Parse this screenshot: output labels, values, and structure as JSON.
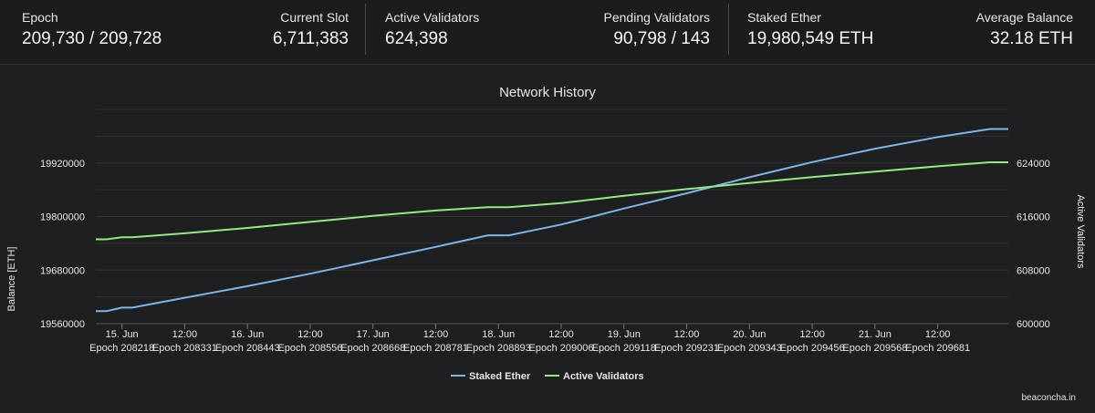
{
  "stats": {
    "epoch": {
      "label": "Epoch",
      "value": "209,730 / 209,728"
    },
    "current_slot": {
      "label": "Current Slot",
      "value": "6,711,383"
    },
    "active_validators": {
      "label": "Active Validators",
      "value": "624,398"
    },
    "pending_validators": {
      "label": "Pending Validators",
      "value": "90,798 / 143"
    },
    "staked_ether": {
      "label": "Staked Ether",
      "value": "19,980,549 ETH"
    },
    "average_balance": {
      "label": "Average Balance",
      "value": "32.18 ETH"
    }
  },
  "watermark": "beaconcha.in",
  "chart_data": {
    "type": "line",
    "title": "Network History",
    "ylabel": "Balance [ETH]",
    "y2label": "Active Validators",
    "ylim": [
      19560000,
      20040000
    ],
    "y2lim": [
      600000,
      632000
    ],
    "yticks": [
      "19560000",
      "19680000",
      "19800000",
      "19920000"
    ],
    "y2ticks": [
      "600000",
      "608000",
      "616000",
      "624000"
    ],
    "xlim": [
      "2023-06-14T19:00",
      "2023-06-22T01:30"
    ],
    "xticks": [
      {
        "t": "2023-06-15T00:00",
        "date": "15. Jun",
        "epoch": "Epoch 208218"
      },
      {
        "t": "2023-06-15T12:00",
        "date": "12:00",
        "epoch": "Epoch 208331"
      },
      {
        "t": "2023-06-16T00:00",
        "date": "16. Jun",
        "epoch": "Epoch 208443"
      },
      {
        "t": "2023-06-16T12:00",
        "date": "12:00",
        "epoch": "Epoch 208556"
      },
      {
        "t": "2023-06-17T00:00",
        "date": "17. Jun",
        "epoch": "Epoch 208668"
      },
      {
        "t": "2023-06-17T12:00",
        "date": "12:00",
        "epoch": "Epoch 208781"
      },
      {
        "t": "2023-06-18T00:00",
        "date": "18. Jun",
        "epoch": "Epoch 208893"
      },
      {
        "t": "2023-06-18T12:00",
        "date": "12:00",
        "epoch": "Epoch 209006"
      },
      {
        "t": "2023-06-19T00:00",
        "date": "19. Jun",
        "epoch": "Epoch 209118"
      },
      {
        "t": "2023-06-19T12:00",
        "date": "12:00",
        "epoch": "Epoch 209231"
      },
      {
        "t": "2023-06-20T00:00",
        "date": "20. Jun",
        "epoch": "Epoch 209343"
      },
      {
        "t": "2023-06-20T12:00",
        "date": "12:00",
        "epoch": "Epoch 209456"
      },
      {
        "t": "2023-06-21T00:00",
        "date": "21. Jun",
        "epoch": "Epoch 209568"
      },
      {
        "t": "2023-06-21T12:00",
        "date": "12:00",
        "epoch": "Epoch 209681"
      }
    ],
    "series": [
      {
        "name": "Staked Ether",
        "axis": "left",
        "color": "#7cb5ec",
        "points": [
          [
            "2023-06-14T19:00",
            19588000
          ],
          [
            "2023-06-14T21:00",
            19588000
          ],
          [
            "2023-06-15T00:00",
            19596000
          ],
          [
            "2023-06-15T02:00",
            19596000
          ],
          [
            "2023-06-15T12:00",
            19618000
          ],
          [
            "2023-06-16T00:00",
            19644000
          ],
          [
            "2023-06-16T12:00",
            19672000
          ],
          [
            "2023-06-17T00:00",
            19702000
          ],
          [
            "2023-06-17T12:00",
            19732000
          ],
          [
            "2023-06-17T22:00",
            19758000
          ],
          [
            "2023-06-18T02:00",
            19758000
          ],
          [
            "2023-06-18T12:00",
            19782000
          ],
          [
            "2023-06-19T00:00",
            19818000
          ],
          [
            "2023-06-19T12:00",
            19852000
          ],
          [
            "2023-06-20T00:00",
            19888000
          ],
          [
            "2023-06-20T12:00",
            19922000
          ],
          [
            "2023-06-21T00:00",
            19952000
          ],
          [
            "2023-06-21T12:00",
            19978000
          ],
          [
            "2023-06-21T22:00",
            19996000
          ],
          [
            "2023-06-22T01:30",
            19996000
          ]
        ]
      },
      {
        "name": "Active Validators",
        "axis": "right",
        "color": "#90ed7d",
        "points": [
          [
            "2023-06-14T19:00",
            612600
          ],
          [
            "2023-06-14T21:00",
            612600
          ],
          [
            "2023-06-15T00:00",
            612900
          ],
          [
            "2023-06-15T02:00",
            612900
          ],
          [
            "2023-06-15T12:00",
            613500
          ],
          [
            "2023-06-16T00:00",
            614300
          ],
          [
            "2023-06-16T12:00",
            615200
          ],
          [
            "2023-06-17T00:00",
            616100
          ],
          [
            "2023-06-17T12:00",
            616900
          ],
          [
            "2023-06-17T22:00",
            617400
          ],
          [
            "2023-06-18T02:00",
            617400
          ],
          [
            "2023-06-18T12:00",
            618000
          ],
          [
            "2023-06-19T00:00",
            619100
          ],
          [
            "2023-06-19T12:00",
            620100
          ],
          [
            "2023-06-20T00:00",
            621000
          ],
          [
            "2023-06-20T12:00",
            621900
          ],
          [
            "2023-06-21T00:00",
            622700
          ],
          [
            "2023-06-21T12:00",
            623500
          ],
          [
            "2023-06-21T22:00",
            624100
          ],
          [
            "2023-06-22T01:30",
            624100
          ]
        ]
      }
    ],
    "grid": true,
    "legend": "bottom-center"
  }
}
